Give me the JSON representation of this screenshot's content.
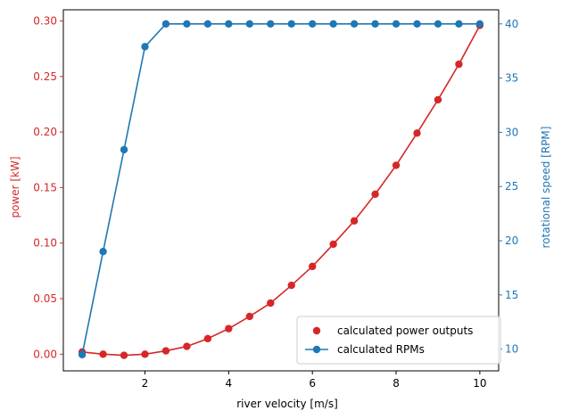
{
  "chart_data": {
    "type": "line",
    "title": "",
    "xlabel": "river velocity [m/s]",
    "ylabel_left": "power [kW]",
    "ylabel_right": "rotational speed [RPM]",
    "xlim": [
      0.05,
      10.45
    ],
    "ylim_left": [
      -0.015,
      0.31
    ],
    "ylim_right": [
      8.0,
      41.3
    ],
    "xticks": [
      2,
      4,
      6,
      8,
      10
    ],
    "yticks_left": [
      0.0,
      0.05,
      0.1,
      0.15,
      0.2,
      0.25,
      0.3
    ],
    "yticks_right": [
      10,
      15,
      20,
      25,
      30,
      35,
      40
    ],
    "xtick_labels": [
      "2",
      "4",
      "6",
      "8",
      "10"
    ],
    "yticks_left_labels": [
      "0.00",
      "0.05",
      "0.10",
      "0.15",
      "0.20",
      "0.25",
      "0.30"
    ],
    "yticks_right_labels": [
      "10",
      "15",
      "20",
      "25",
      "30",
      "35",
      "40"
    ],
    "grid": false,
    "legend_position": "lower-right",
    "colors": {
      "power": "#d62728",
      "rpm": "#1f77b4"
    },
    "x": [
      0.5,
      1.0,
      1.5,
      2.0,
      2.5,
      3.0,
      3.5,
      4.0,
      4.5,
      5.0,
      5.5,
      6.0,
      6.5,
      7.0,
      7.5,
      8.0,
      8.5,
      9.0,
      9.5,
      10.0
    ],
    "series": [
      {
        "name": "calculated power outputs",
        "axis": "left",
        "style": "marker-with-line",
        "legend_style": "marker",
        "values": [
          0.002,
          0.0,
          -0.001,
          0.0,
          0.003,
          0.007,
          0.014,
          0.023,
          0.034,
          0.046,
          0.062,
          0.079,
          0.099,
          0.12,
          0.144,
          0.17,
          0.199,
          0.229,
          0.261,
          0.296
        ]
      },
      {
        "name": "calculated RPMs",
        "axis": "right",
        "style": "marker-with-line",
        "legend_style": "marker-with-line",
        "values": [
          9.5,
          19.0,
          28.4,
          37.9,
          40.0,
          40.0,
          40.0,
          40.0,
          40.0,
          40.0,
          40.0,
          40.0,
          40.0,
          40.0,
          40.0,
          40.0,
          40.0,
          40.0,
          40.0,
          40.0
        ]
      }
    ]
  }
}
